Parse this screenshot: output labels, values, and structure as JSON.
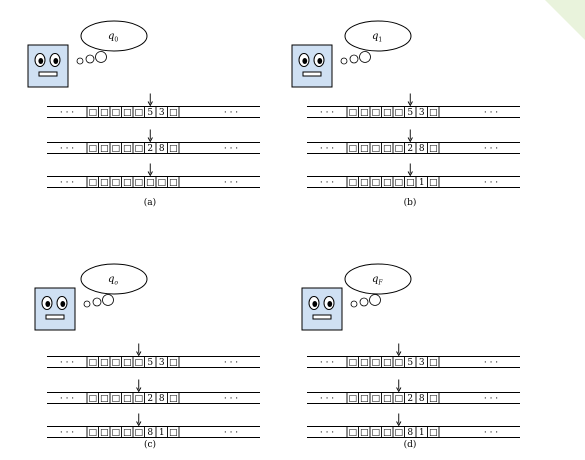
{
  "panels": [
    {
      "label": "(a)",
      "state": {
        "main": "q",
        "sub": "0",
        "sub_italic": false
      },
      "head_index": 5,
      "tapes": [
        {
          "cells": [
            "□",
            "□",
            "□",
            "□",
            "□",
            "5",
            "3",
            "□"
          ]
        },
        {
          "cells": [
            "□",
            "□",
            "□",
            "□",
            "□",
            "2",
            "8",
            "□"
          ]
        },
        {
          "cells": [
            "□",
            "□",
            "□",
            "□",
            "□",
            "□",
            "□",
            "□"
          ]
        }
      ]
    },
    {
      "label": "(b)",
      "state": {
        "main": "q",
        "sub": "1",
        "sub_italic": false
      },
      "head_index": 5,
      "tapes": [
        {
          "cells": [
            "□",
            "□",
            "□",
            "□",
            "□",
            "5",
            "3",
            "□"
          ]
        },
        {
          "cells": [
            "□",
            "□",
            "□",
            "□",
            "□",
            "2",
            "8",
            "□"
          ]
        },
        {
          "cells": [
            "□",
            "□",
            "□",
            "□",
            "□",
            "□",
            "1",
            "□"
          ]
        }
      ]
    },
    {
      "label": "(c)",
      "state": {
        "main": "q",
        "sub": "o",
        "sub_italic": true
      },
      "head_index": 4,
      "tapes": [
        {
          "cells": [
            "□",
            "□",
            "□",
            "□",
            "□",
            "5",
            "3",
            "□"
          ]
        },
        {
          "cells": [
            "□",
            "□",
            "□",
            "□",
            "□",
            "2",
            "8",
            "□"
          ]
        },
        {
          "cells": [
            "□",
            "□",
            "□",
            "□",
            "□",
            "8",
            "1",
            "□"
          ]
        }
      ]
    },
    {
      "label": "(d)",
      "state": {
        "main": "q",
        "sub": "F",
        "sub_italic": true
      },
      "head_index": 4,
      "tapes": [
        {
          "cells": [
            "□",
            "□",
            "□",
            "□",
            "□",
            "5",
            "3",
            "□"
          ]
        },
        {
          "cells": [
            "□",
            "□",
            "□",
            "□",
            "□",
            "2",
            "8",
            "□"
          ]
        },
        {
          "cells": [
            "□",
            "□",
            "□",
            "□",
            "□",
            "8",
            "1",
            "□"
          ]
        }
      ]
    }
  ],
  "ellipsis": "· · ·",
  "colors": {
    "face_fill": "#cfe0f3",
    "background": "#ffffff",
    "page_accent": "#e9f3dc"
  }
}
